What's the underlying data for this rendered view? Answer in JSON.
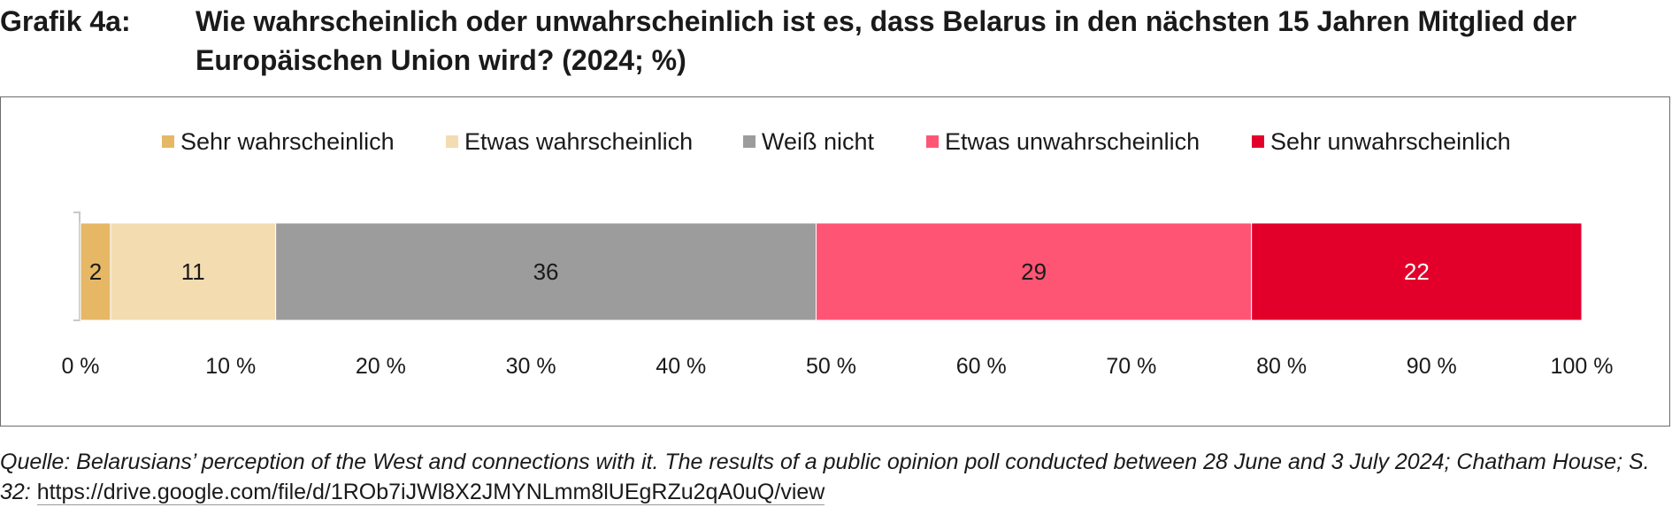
{
  "header": {
    "label": "Grafik 4a:",
    "title": "Wie wahrscheinlich oder unwahrscheinlich ist es, dass Belarus in den nächsten 15 Jahren Mitglied der Europäischen Union wird? (2024; %)"
  },
  "chart_data": {
    "type": "bar",
    "orientation": "horizontal-stacked",
    "title": "Wie wahrscheinlich oder unwahrscheinlich ist es, dass Belarus in den nächsten 15 Jahren Mitglied der Europäischen Union wird? (2024; %)",
    "categories": [
      ""
    ],
    "series": [
      {
        "name": "Sehr wahrscheinlich",
        "values": [
          2
        ],
        "color": "#E6B865",
        "label_color": "#1a1a1a"
      },
      {
        "name": "Etwas wahrscheinlich",
        "values": [
          11
        ],
        "color": "#F2DCB0",
        "label_color": "#1a1a1a"
      },
      {
        "name": "Weiß nicht",
        "values": [
          36
        ],
        "color": "#9D9C9D",
        "label_color": "#1a1a1a"
      },
      {
        "name": "Etwas unwahrscheinlich",
        "values": [
          29
        ],
        "color": "#FF5575",
        "label_color": "#1a1a1a"
      },
      {
        "name": "Sehr unwahrscheinlich",
        "values": [
          22
        ],
        "color": "#E2002B",
        "label_color": "#ffffff"
      }
    ],
    "xlim": [
      0,
      100
    ],
    "xticks": [
      0,
      10,
      20,
      30,
      40,
      50,
      60,
      70,
      80,
      90,
      100
    ],
    "xtick_labels": [
      "0 %",
      "10 %",
      "20 %",
      "30 %",
      "40 %",
      "50 %",
      "60 %",
      "70 %",
      "80 %",
      "90 %",
      "100 %"
    ],
    "xlabel": "",
    "ylabel": "",
    "legend_position": "top",
    "grid": false
  },
  "source": {
    "text": "Quelle: Belarusians’ perception of the West and connections with it. The results of a public opinion poll conducted between 28 June and 3 July 2024; Chatham House; S. 32: ",
    "link": "https://drive.google.com/file/d/1ROb7iJWl8X2JMYNLmm8lUEgRZu2qA0uQ/view"
  }
}
